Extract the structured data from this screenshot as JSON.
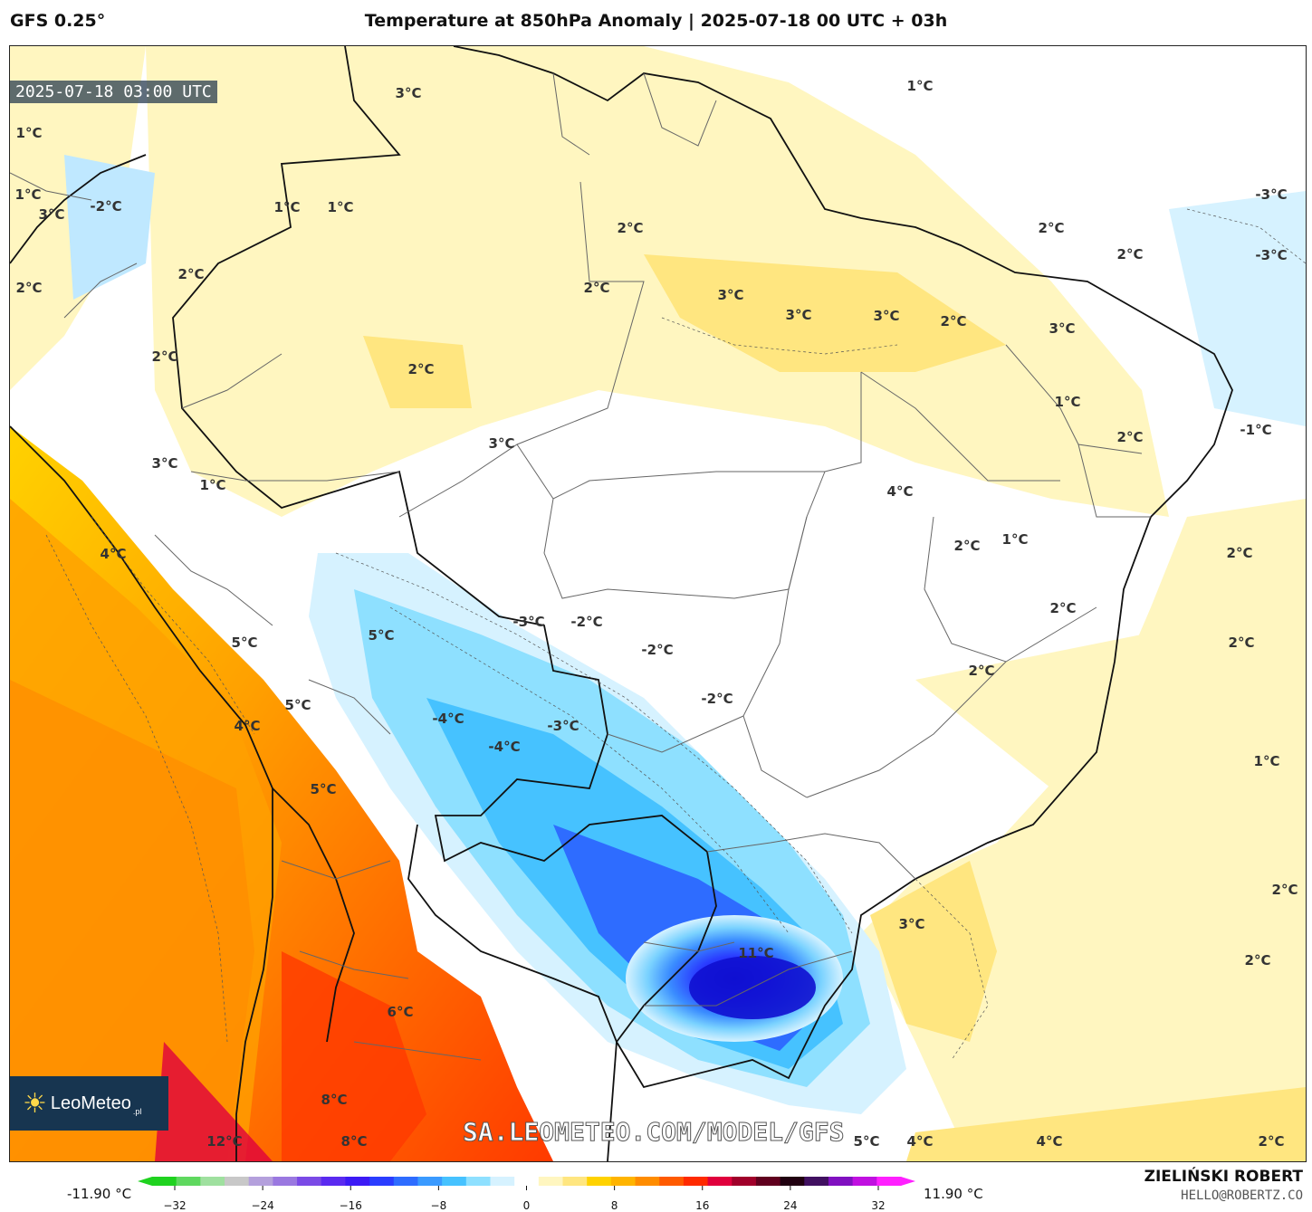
{
  "header": {
    "model": "GFS 0.25°",
    "title": "Temperature at 850hPa Anomaly | 2025-07-18 00 UTC + 03h"
  },
  "map": {
    "timestamp": "2025-07-18 03:00 UTC",
    "watermark": "SA.LEOMETEO.COM/MODEL/GFS",
    "logo_text": "LeoMeteo",
    "logo_sub": ".pl",
    "labels": [
      {
        "text": "3°C"
      },
      {
        "text": "1°C"
      },
      {
        "text": "1°C"
      },
      {
        "text": "1°C"
      },
      {
        "text": "3°C"
      },
      {
        "text": "-2°C"
      },
      {
        "text": "1°C"
      },
      {
        "text": "1°C"
      },
      {
        "text": "-3°C"
      },
      {
        "text": "2°C"
      },
      {
        "text": "2°C"
      },
      {
        "text": "2°C"
      },
      {
        "text": "-3°C"
      },
      {
        "text": "2°C"
      },
      {
        "text": "2°C"
      },
      {
        "text": "2°C"
      },
      {
        "text": "3°C"
      },
      {
        "text": "3°C"
      },
      {
        "text": "3°C"
      },
      {
        "text": "2°C"
      },
      {
        "text": "3°C"
      },
      {
        "text": "2°C"
      },
      {
        "text": "2°C"
      },
      {
        "text": "-1°C"
      },
      {
        "text": "1°C"
      },
      {
        "text": "2°C"
      },
      {
        "text": "3°C"
      },
      {
        "text": "3°C"
      },
      {
        "text": "1°C"
      },
      {
        "text": "4°C"
      },
      {
        "text": "2°C"
      },
      {
        "text": "1°C"
      },
      {
        "text": "2°C"
      },
      {
        "text": "-3°C"
      },
      {
        "text": "-2°C"
      },
      {
        "text": "-2°C"
      },
      {
        "text": "2°C"
      },
      {
        "text": "4°C"
      },
      {
        "text": "5°C"
      },
      {
        "text": "2°C"
      },
      {
        "text": "2°C"
      },
      {
        "text": "-2°C"
      },
      {
        "text": "5°C"
      },
      {
        "text": "5°C"
      },
      {
        "text": "-4°C"
      },
      {
        "text": "-3°C"
      },
      {
        "text": "-4°C"
      },
      {
        "text": "1°C"
      },
      {
        "text": "4°C"
      },
      {
        "text": "5°C"
      },
      {
        "text": "2°C"
      },
      {
        "text": "3°C"
      },
      {
        "text": "11°C"
      },
      {
        "text": "2°C"
      },
      {
        "text": "6°C"
      },
      {
        "text": "8°C"
      },
      {
        "text": "12°C"
      },
      {
        "text": "8°C"
      },
      {
        "text": "5°C"
      },
      {
        "text": "4°C"
      },
      {
        "text": "4°C"
      },
      {
        "text": "2°C"
      }
    ]
  },
  "colorbar": {
    "min_label": "-11.90 °C",
    "max_label": "11.90 °C",
    "ticks": [
      "−32",
      "−24",
      "−16",
      "−8",
      "0",
      "8",
      "16",
      "24",
      "32"
    ],
    "colors": [
      "#1fd21f",
      "#5fd85f",
      "#9fe09f",
      "#c8c8c8",
      "#b4a0dc",
      "#9a78e0",
      "#7a4ae6",
      "#5a2af0",
      "#3c1af5",
      "#2a3cff",
      "#2e6cff",
      "#3a9aff",
      "#46c2ff",
      "#8ee0ff",
      "#d6f2ff",
      "#ffffff",
      "#fff6c0",
      "#ffe680",
      "#ffd200",
      "#ffb400",
      "#ff8c00",
      "#ff5a00",
      "#ff2a00",
      "#e0003c",
      "#a0002a",
      "#60001e",
      "#200010",
      "#401060",
      "#8010c0",
      "#c010e0",
      "#ff20ff"
    ]
  },
  "footer": {
    "author": "ZIELIŃSKI ROBERT",
    "email": "HELLO@ROBERTZ.CO"
  }
}
